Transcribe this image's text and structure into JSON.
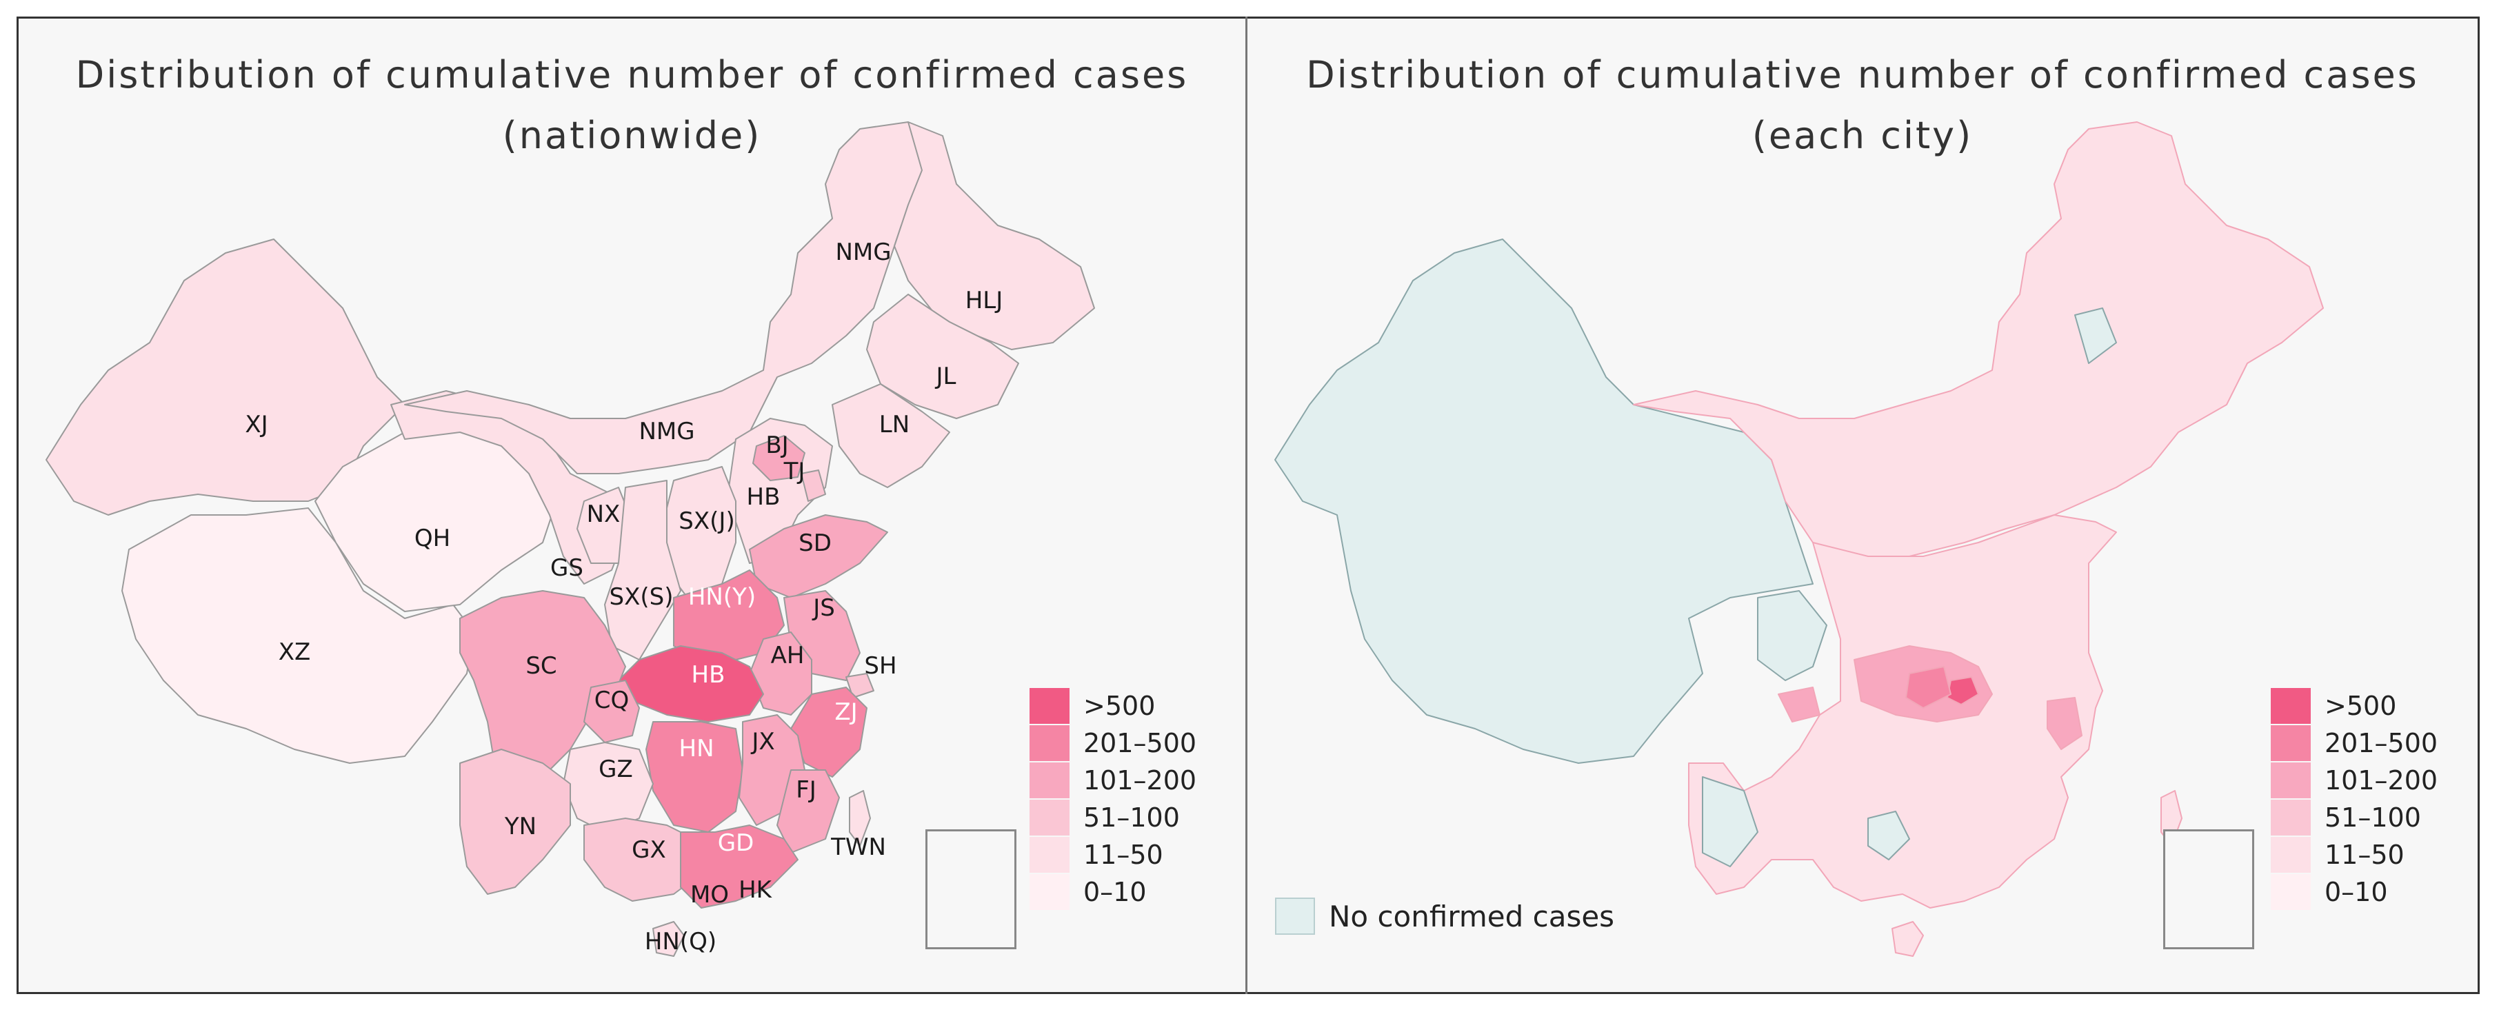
{
  "left_panel": {
    "title_line1": "Distribution of cumulative number of confirmed cases",
    "title_line2": "(nationwide)",
    "province_labels": [
      "NMG",
      "HLJ",
      "JL",
      "LN",
      "XJ",
      "NMG",
      "BJ",
      "TJ",
      "HB",
      "NX",
      "SX(J)",
      "QH",
      "GS",
      "SD",
      "SX(S)",
      "HN(Y)",
      "JS",
      "XZ",
      "SC",
      "HB",
      "AH",
      "SH",
      "CQ",
      "ZJ",
      "HN",
      "JX",
      "GZ",
      "FJ",
      "YN",
      "GX",
      "GD",
      "TWN",
      "HK",
      "MO",
      "HN(Q)"
    ]
  },
  "right_panel": {
    "title_line1": "Distribution of cumulative number of confirmed cases",
    "title_line2": "(each city)",
    "no_cases_label": "No confirmed cases"
  },
  "legend": {
    "items": [
      {
        "label": ">500",
        "color": "#f15a84"
      },
      {
        "label": "201–500",
        "color": "#f585a4"
      },
      {
        "label": "101–200",
        "color": "#f8a8bf"
      },
      {
        "label": "51–100",
        "color": "#fac6d4"
      },
      {
        "label": "11–50",
        "color": "#fde0e7"
      },
      {
        "label": "0–10",
        "color": "#fff0f3"
      }
    ]
  },
  "colors": {
    "no_cases": "#e2efef",
    "border": "#999999",
    "city_border": "#f2a6b8"
  }
}
